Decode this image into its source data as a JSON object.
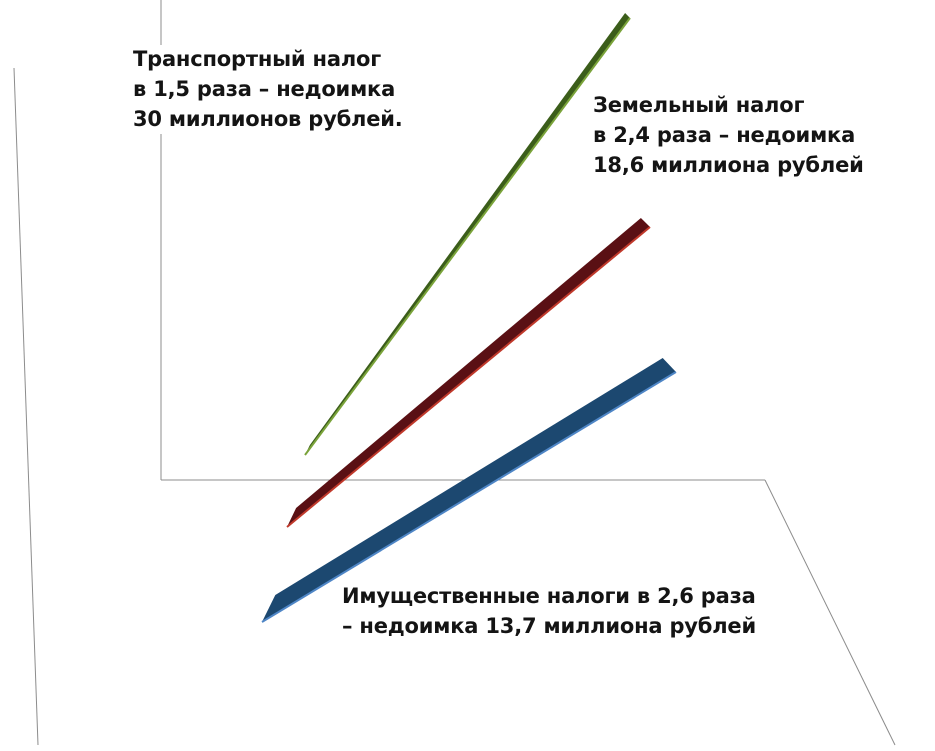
{
  "chart_data": {
    "type": "line",
    "title": "",
    "xlabel": "",
    "ylabel": "",
    "grid": true,
    "series": [
      {
        "name": "",
        "color": "#1c4870",
        "edge": "#4f86c6",
        "values": [
          1,
          2.6
        ]
      },
      {
        "name": "",
        "color": "#5a1014",
        "edge": "#c0392b",
        "values": [
          1,
          2.4
        ]
      },
      {
        "name": "",
        "color": "#3b5d1a",
        "edge": "#7aa33a",
        "values": [
          1,
          1.5
        ]
      }
    ],
    "annotations": [
      {
        "lines": [
          "Транспортный налог",
          "в 1,5 раза – недоимка",
          "30 миллионов рублей."
        ]
      },
      {
        "lines": [
          "Земельный налог",
          "в 2,4 раза – недоимка",
          "18,6 миллиона  рублей"
        ]
      },
      {
        "lines": [
          "Имущественные налоги в 2,6 раза",
          "– недоимка 13,7 миллиона рублей"
        ]
      }
    ]
  }
}
